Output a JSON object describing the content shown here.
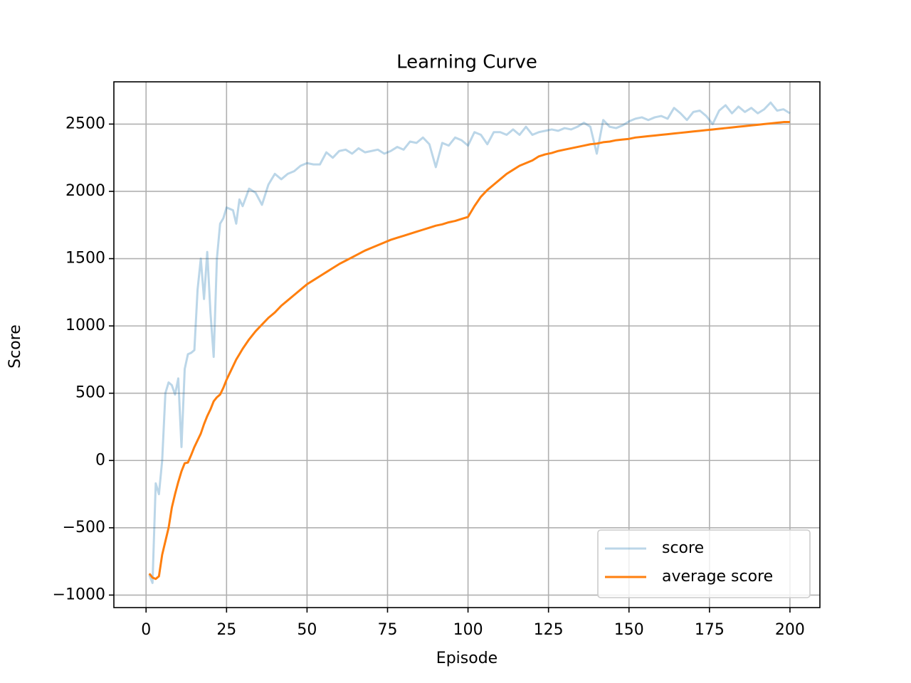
{
  "chart_data": {
    "type": "line",
    "title": "Learning Curve",
    "x_label": "Episode",
    "y_label": "Score",
    "x": [
      1,
      2,
      3,
      4,
      5,
      6,
      7,
      8,
      9,
      10,
      11,
      12,
      13,
      14,
      15,
      16,
      17,
      18,
      19,
      20,
      21,
      22,
      23,
      24,
      25,
      26,
      27,
      28,
      29,
      30,
      32,
      34,
      36,
      38,
      40,
      42,
      44,
      46,
      48,
      50,
      52,
      54,
      56,
      58,
      60,
      62,
      64,
      66,
      68,
      70,
      72,
      74,
      76,
      78,
      80,
      82,
      84,
      86,
      88,
      90,
      92,
      94,
      96,
      98,
      100,
      102,
      104,
      106,
      108,
      110,
      112,
      114,
      116,
      118,
      120,
      122,
      124,
      126,
      128,
      130,
      132,
      134,
      136,
      138,
      140,
      142,
      144,
      146,
      148,
      150,
      152,
      154,
      156,
      158,
      160,
      162,
      164,
      166,
      168,
      170,
      172,
      174,
      176,
      178,
      180,
      182,
      184,
      186,
      188,
      190,
      192,
      194,
      196,
      198,
      200
    ],
    "series": [
      {
        "name": "score",
        "color": "#1f77b4",
        "opacity": 0.3,
        "values": [
          -850,
          -910,
          -170,
          -250,
          0,
          500,
          580,
          560,
          490,
          610,
          100,
          680,
          790,
          800,
          820,
          1270,
          1500,
          1200,
          1550,
          1100,
          770,
          1500,
          1760,
          1800,
          1880,
          1870,
          1860,
          1760,
          1940,
          1890,
          2020,
          1990,
          1900,
          2050,
          2130,
          2090,
          2130,
          2150,
          2190,
          2210,
          2200,
          2200,
          2290,
          2250,
          2300,
          2310,
          2280,
          2320,
          2290,
          2300,
          2310,
          2280,
          2300,
          2330,
          2310,
          2370,
          2360,
          2400,
          2350,
          2180,
          2360,
          2340,
          2400,
          2380,
          2340,
          2440,
          2420,
          2350,
          2440,
          2440,
          2420,
          2460,
          2420,
          2480,
          2420,
          2440,
          2450,
          2460,
          2450,
          2470,
          2460,
          2480,
          2510,
          2480,
          2280,
          2530,
          2480,
          2470,
          2490,
          2520,
          2540,
          2550,
          2530,
          2550,
          2560,
          2540,
          2620,
          2580,
          2530,
          2590,
          2600,
          2560,
          2500,
          2600,
          2640,
          2580,
          2630,
          2590,
          2620,
          2580,
          2610,
          2660,
          2600,
          2610,
          2580
        ]
      },
      {
        "name": "average score",
        "color": "#ff7f0e",
        "opacity": 1,
        "values": [
          -840,
          -870,
          -880,
          -860,
          -700,
          -600,
          -500,
          -350,
          -250,
          -160,
          -80,
          -20,
          -15,
          40,
          100,
          150,
          200,
          270,
          330,
          380,
          440,
          470,
          490,
          540,
          600,
          650,
          700,
          750,
          790,
          830,
          900,
          960,
          1010,
          1060,
          1100,
          1150,
          1190,
          1230,
          1270,
          1310,
          1340,
          1370,
          1400,
          1430,
          1460,
          1485,
          1510,
          1535,
          1560,
          1580,
          1600,
          1620,
          1640,
          1655,
          1670,
          1685,
          1700,
          1715,
          1730,
          1745,
          1755,
          1770,
          1780,
          1795,
          1810,
          1890,
          1960,
          2010,
          2050,
          2090,
          2130,
          2160,
          2190,
          2210,
          2230,
          2260,
          2275,
          2285,
          2300,
          2310,
          2320,
          2330,
          2340,
          2350,
          2355,
          2365,
          2370,
          2380,
          2385,
          2390,
          2400,
          2405,
          2410,
          2415,
          2420,
          2425,
          2430,
          2435,
          2440,
          2445,
          2450,
          2455,
          2460,
          2465,
          2470,
          2475,
          2480,
          2485,
          2490,
          2495,
          2500,
          2505,
          2510,
          2515,
          2515
        ]
      }
    ],
    "xlim": [
      -10,
      209.3
    ],
    "ylim": [
      -1093,
      2814
    ],
    "xticks": [
      0,
      25,
      50,
      75,
      100,
      125,
      150,
      175,
      200
    ],
    "yticks": [
      {
        "value": -1000,
        "label": "−1000"
      },
      {
        "value": -500,
        "label": "−500"
      },
      0,
      500,
      1000,
      1500,
      2000,
      2500
    ],
    "grid": true,
    "legend": "lower right"
  }
}
